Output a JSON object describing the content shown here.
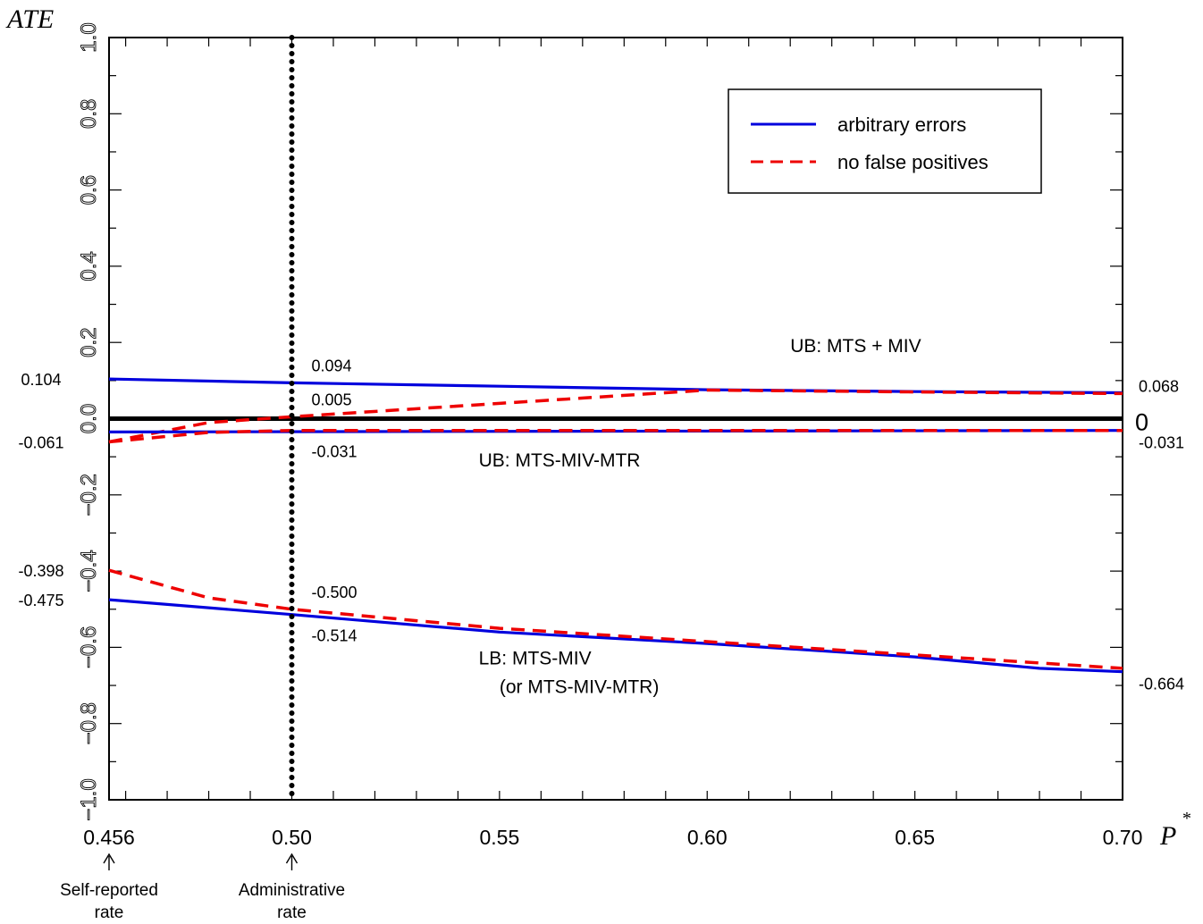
{
  "chart_data": {
    "type": "line",
    "ylabel": "ATE",
    "xlabel": "P",
    "xlabel_superscript": "*",
    "xlim": [
      0.456,
      0.7
    ],
    "ylim": [
      -1.0,
      1.0
    ],
    "grid": false,
    "legend_placement": "top-right",
    "x_ticks": [
      {
        "value": 0.456,
        "label": "0.456"
      },
      {
        "value": 0.5,
        "label": "0.50"
      },
      {
        "value": 0.55,
        "label": "0.55"
      },
      {
        "value": 0.6,
        "label": "0.60"
      },
      {
        "value": 0.65,
        "label": "0.65"
      },
      {
        "value": 0.7,
        "label": "0.70"
      }
    ],
    "y_ticks": [
      {
        "value": 1.0,
        "label": "1.0"
      },
      {
        "value": 0.8,
        "label": "0.8"
      },
      {
        "value": 0.6,
        "label": "0.6"
      },
      {
        "value": 0.4,
        "label": "0.4"
      },
      {
        "value": 0.2,
        "label": "0.2"
      },
      {
        "value": 0.0,
        "label": "0.0"
      },
      {
        "value": -0.2,
        "label": "−0.2"
      },
      {
        "value": -0.4,
        "label": "−0.4"
      },
      {
        "value": -0.6,
        "label": "−0.6"
      },
      {
        "value": -0.8,
        "label": "−0.8"
      },
      {
        "value": -1.0,
        "label": "−1.0"
      }
    ],
    "series": [
      {
        "name": "arbitrary errors",
        "style": "solid",
        "color": "#0000dd",
        "role": "UB: MTS + MIV",
        "x": [
          0.456,
          0.5,
          0.55,
          0.6,
          0.65,
          0.7
        ],
        "y": [
          0.104,
          0.094,
          0.085,
          0.076,
          0.071,
          0.068
        ]
      },
      {
        "name": "no false positives",
        "style": "dashed",
        "color": "#ee0000",
        "role": "UB: MTS + MIV",
        "x": [
          0.456,
          0.48,
          0.5,
          0.55,
          0.6,
          0.65,
          0.7
        ],
        "y": [
          -0.061,
          -0.01,
          0.005,
          0.04,
          0.075,
          0.07,
          0.066
        ]
      },
      {
        "name": "arbitrary errors",
        "style": "solid",
        "color": "#0000dd",
        "role": "UB: MTS-MIV-MTR",
        "x": [
          0.456,
          0.7
        ],
        "y": [
          -0.035,
          -0.031
        ]
      },
      {
        "name": "no false positives",
        "style": "dashed",
        "color": "#ee0000",
        "role": "UB: MTS-MIV-MTR",
        "x": [
          0.456,
          0.48,
          0.5,
          0.7
        ],
        "y": [
          -0.061,
          -0.036,
          -0.031,
          -0.031
        ]
      },
      {
        "name": "arbitrary errors",
        "style": "solid",
        "color": "#0000dd",
        "role": "LB: MTS-MIV",
        "x": [
          0.456,
          0.5,
          0.55,
          0.6,
          0.65,
          0.68,
          0.7
        ],
        "y": [
          -0.475,
          -0.514,
          -0.56,
          -0.59,
          -0.625,
          -0.655,
          -0.664
        ]
      },
      {
        "name": "no false positives",
        "style": "dashed",
        "color": "#ee0000",
        "role": "LB: MTS-MIV",
        "x": [
          0.456,
          0.47,
          0.48,
          0.5,
          0.55,
          0.6,
          0.65,
          0.7
        ],
        "y": [
          -0.398,
          -0.44,
          -0.47,
          -0.5,
          -0.55,
          -0.585,
          -0.62,
          -0.655
        ]
      }
    ],
    "zero_line": {
      "y": 0,
      "label": "0",
      "color": "#000000"
    },
    "vertical_marker": {
      "x": 0.5,
      "style": "dotted",
      "color": "#000000"
    },
    "left_labels": [
      {
        "y": 0.104,
        "label": "0.104"
      },
      {
        "y": -0.061,
        "label": "-0.061"
      },
      {
        "y": -0.398,
        "label": "-0.398"
      },
      {
        "y": -0.475,
        "label": "-0.475"
      }
    ],
    "right_labels": [
      {
        "y": 0.068,
        "label": "0.068"
      },
      {
        "y": -0.031,
        "label": "-0.031"
      },
      {
        "y": -0.664,
        "label": "-0.664"
      }
    ],
    "marker_labels": [
      {
        "y": 0.094,
        "label": "0.094",
        "position": "above"
      },
      {
        "y": 0.005,
        "label": "0.005",
        "position": "above"
      },
      {
        "y": -0.031,
        "label": "-0.031",
        "position": "below"
      },
      {
        "y": -0.5,
        "label": "-0.500",
        "position": "above"
      },
      {
        "y": -0.514,
        "label": "-0.514",
        "position": "below"
      }
    ],
    "curve_annotations": [
      {
        "text": "UB: MTS + MIV",
        "x": 0.62,
        "y": 0.175
      },
      {
        "text": "UB: MTS-MIV-MTR",
        "x": 0.545,
        "y": -0.125
      },
      {
        "text": "LB: MTS-MIV",
        "x": 0.545,
        "y": -0.645
      },
      {
        "text": "(or MTS-MIV-MTR)",
        "x": 0.55,
        "y": -0.72
      }
    ],
    "x_callouts": [
      {
        "x": 0.456,
        "lines": [
          "Self-reported",
          "rate"
        ]
      },
      {
        "x": 0.5,
        "lines": [
          "Administrative",
          "rate"
        ]
      }
    ]
  }
}
